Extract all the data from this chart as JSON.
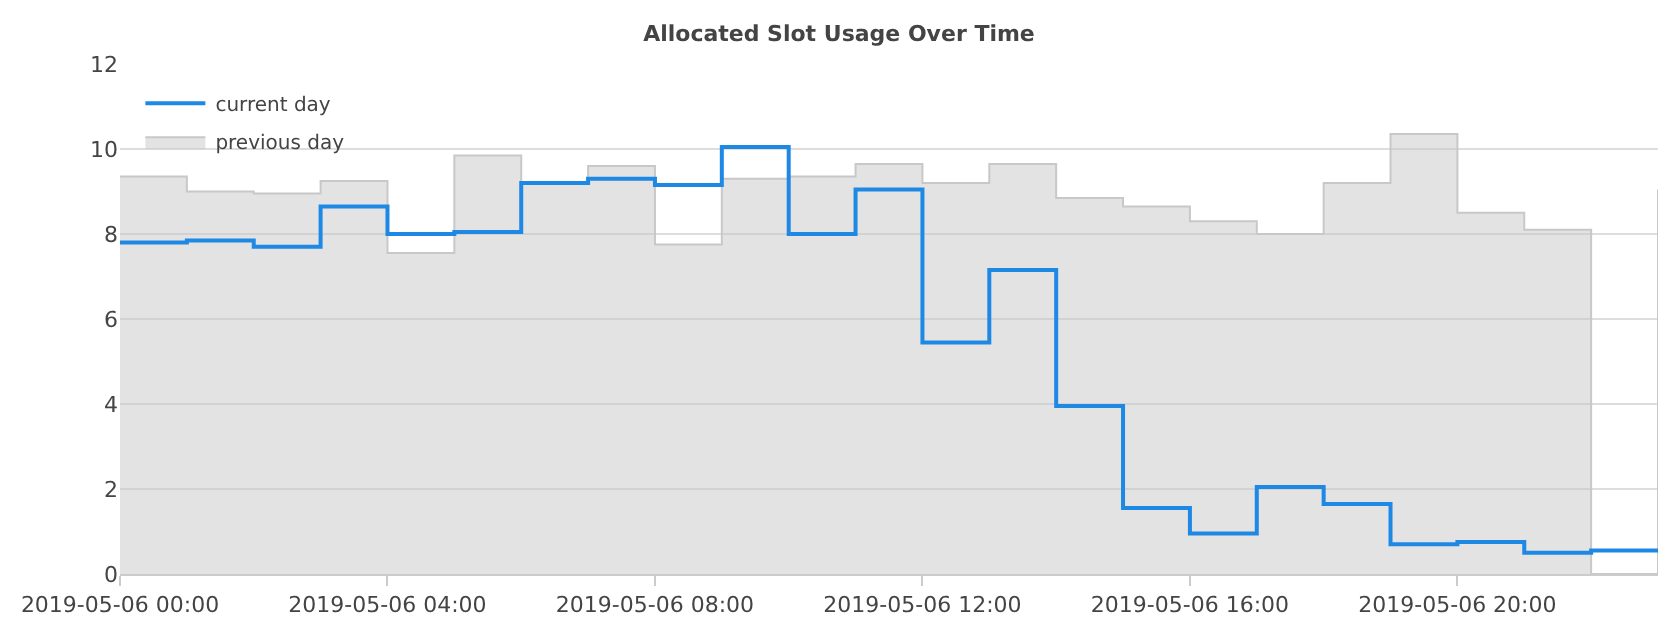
{
  "chart_data": {
    "type": "step",
    "title": "Allocated Slot Usage Over Time",
    "x": [
      "2019-05-06T00:00",
      "2019-05-06T01:00",
      "2019-05-06T02:00",
      "2019-05-06T03:00",
      "2019-05-06T04:00",
      "2019-05-06T05:00",
      "2019-05-06T06:00",
      "2019-05-06T07:00",
      "2019-05-06T08:00",
      "2019-05-06T09:00",
      "2019-05-06T10:00",
      "2019-05-06T11:00",
      "2019-05-06T12:00",
      "2019-05-06T13:00",
      "2019-05-06T14:00",
      "2019-05-06T15:00",
      "2019-05-06T16:00",
      "2019-05-06T17:00",
      "2019-05-06T18:00",
      "2019-05-06T19:00",
      "2019-05-06T20:00",
      "2019-05-06T21:00",
      "2019-05-06T22:00",
      "2019-05-06T23:00"
    ],
    "series": [
      {
        "name": "previous day",
        "color": "#c8c8c8",
        "type": "area",
        "values": [
          9.35,
          9.0,
          8.95,
          9.25,
          7.55,
          9.85,
          9.2,
          9.6,
          7.75,
          9.3,
          9.35,
          9.65,
          9.2,
          9.65,
          8.85,
          8.65,
          8.3,
          8.0,
          9.2,
          10.35,
          8.5,
          8.1,
          0,
          9.05
        ]
      },
      {
        "name": "current day",
        "color": "#1e88e5",
        "values": [
          7.8,
          7.85,
          7.7,
          8.65,
          8.0,
          8.05,
          9.2,
          9.3,
          9.15,
          10.05,
          8.0,
          9.05,
          5.45,
          7.15,
          3.95,
          1.55,
          0.95,
          2.05,
          1.65,
          0.7,
          0.75,
          0.5,
          0.55,
          0.55
        ]
      }
    ],
    "xlim": [
      "2019-05-06T00:00",
      "2019-05-06T23:00"
    ],
    "xticks": [
      {
        "value": "2019-05-06T00:00",
        "label": "2019-05-06 00:00"
      },
      {
        "value": "2019-05-06T04:00",
        "label": "2019-05-06 04:00"
      },
      {
        "value": "2019-05-06T08:00",
        "label": "2019-05-06 08:00"
      },
      {
        "value": "2019-05-06T12:00",
        "label": "2019-05-06 12:00"
      },
      {
        "value": "2019-05-06T16:00",
        "label": "2019-05-06 16:00"
      },
      {
        "value": "2019-05-06T20:00",
        "label": "2019-05-06 20:00"
      }
    ],
    "ylim": [
      0,
      12
    ],
    "yticks": [
      0,
      2,
      4,
      6,
      8,
      10,
      12
    ],
    "grid": "y",
    "legend": "top left",
    "marker": "none",
    "line_style": "solid"
  }
}
